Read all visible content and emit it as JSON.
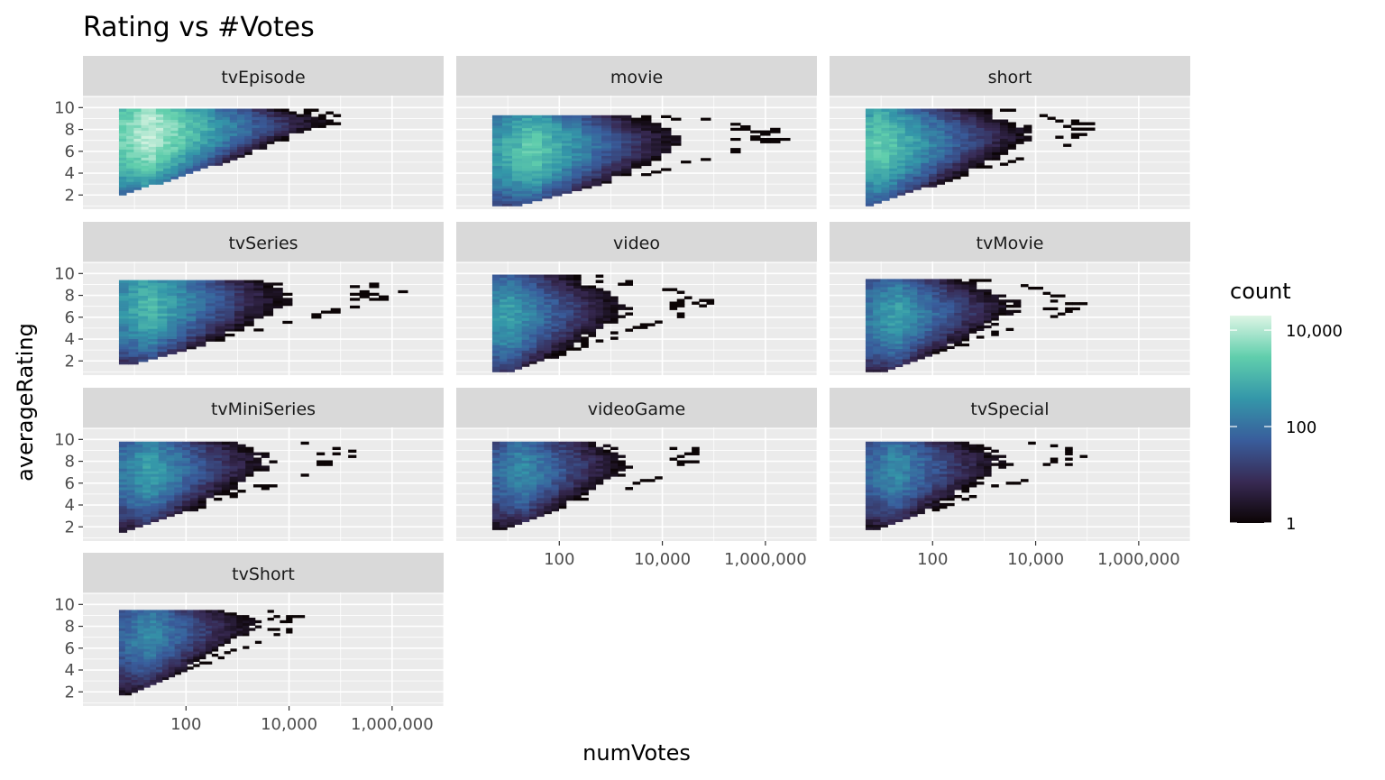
{
  "chart_data": {
    "type": "heatmap",
    "title": "Rating vs #Votes",
    "xlabel": "numVotes",
    "ylabel": "averageRating",
    "x_scale": "log10",
    "xlim": [
      1,
      10000000
    ],
    "ylim": [
      1,
      10
    ],
    "x_ticks": [
      {
        "value": 100,
        "label": "100"
      },
      {
        "value": 10000,
        "label": "10,000"
      },
      {
        "value": 1000000,
        "label": "1,000,000"
      }
    ],
    "y_ticks": [
      {
        "value": 2,
        "label": "2"
      },
      {
        "value": 4,
        "label": "4"
      },
      {
        "value": 6,
        "label": "6"
      },
      {
        "value": 8,
        "label": "8"
      },
      {
        "value": 10,
        "label": "10"
      }
    ],
    "grid": true,
    "legend": {
      "title": "count",
      "placement": "right",
      "scale": "log10",
      "range": [
        1,
        20000
      ],
      "ticks": [
        {
          "value": 1,
          "label": "1"
        },
        {
          "value": 100,
          "label": "100"
        },
        {
          "value": 10000,
          "label": "10,000"
        }
      ],
      "colors": [
        "#0b0405",
        "#382a54",
        "#395d9c",
        "#3497a9",
        "#60ceac",
        "#def5e5"
      ]
    },
    "panels": [
      {
        "name": "tvEpisode",
        "votes_range": [
          5,
          100000
        ],
        "peak_count": 15000,
        "peak_votes": 20,
        "peak_rating": 7.4,
        "max_rating": 9.9
      },
      {
        "name": "movie",
        "votes_range": [
          5,
          3000000
        ],
        "peak_count": 3000,
        "peak_votes": 30,
        "peak_rating": 6.0,
        "max_rating": 9.3
      },
      {
        "name": "short",
        "votes_range": [
          5,
          200000
        ],
        "peak_count": 3000,
        "peak_votes": 10,
        "peak_rating": 6.5,
        "max_rating": 9.9
      },
      {
        "name": "tvSeries",
        "votes_range": [
          5,
          2000000
        ],
        "peak_count": 1500,
        "peak_votes": 20,
        "peak_rating": 7.0,
        "max_rating": 9.4
      },
      {
        "name": "video",
        "votes_range": [
          5,
          100000
        ],
        "peak_count": 600,
        "peak_votes": 10,
        "peak_rating": 6.0,
        "max_rating": 9.9
      },
      {
        "name": "tvMovie",
        "votes_range": [
          5,
          100000
        ],
        "peak_count": 600,
        "peak_votes": 20,
        "peak_rating": 6.0,
        "max_rating": 9.5
      },
      {
        "name": "tvMiniSeries",
        "votes_range": [
          5,
          200000
        ],
        "peak_count": 600,
        "peak_votes": 20,
        "peak_rating": 7.0,
        "max_rating": 9.8
      },
      {
        "name": "videoGame",
        "votes_range": [
          5,
          100000
        ],
        "peak_count": 300,
        "peak_votes": 20,
        "peak_rating": 7.0,
        "max_rating": 9.8
      },
      {
        "name": "tvSpecial",
        "votes_range": [
          5,
          100000
        ],
        "peak_count": 300,
        "peak_votes": 20,
        "peak_rating": 7.0,
        "max_rating": 9.8
      },
      {
        "name": "tvShort",
        "votes_range": [
          5,
          20000
        ],
        "peak_count": 300,
        "peak_votes": 20,
        "peak_rating": 7.0,
        "max_rating": 9.5
      }
    ]
  }
}
